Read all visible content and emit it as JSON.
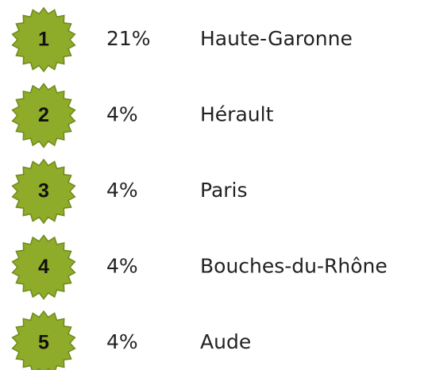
{
  "items": [
    {
      "rank": "1",
      "share": "21%",
      "name": "Haute-Garonne"
    },
    {
      "rank": "2",
      "share": "4%",
      "name": "Hérault"
    },
    {
      "rank": "3",
      "share": "4%",
      "name": "Paris"
    },
    {
      "rank": "4",
      "share": "4%",
      "name": "Bouches-du-Rhône"
    },
    {
      "rank": "5",
      "share": "4%",
      "name": "Aude"
    }
  ]
}
